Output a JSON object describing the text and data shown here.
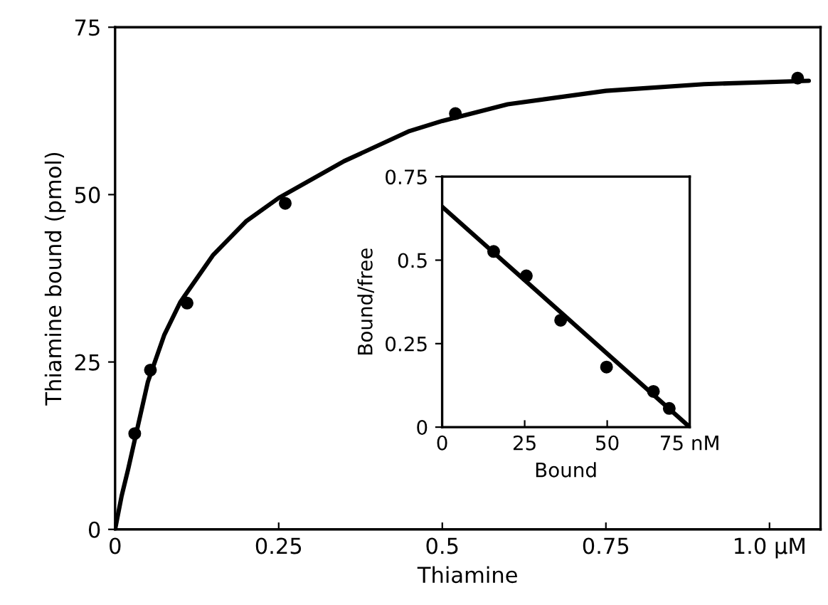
{
  "chart_data": [
    {
      "type": "scatter",
      "xlabel": "Thiamine",
      "ylabel": "Thiamine bound (pmol)",
      "xlim": [
        0,
        1.078
      ],
      "ylim": [
        0,
        75
      ],
      "xticks": [
        0,
        0.25,
        0.5,
        0.75,
        {
          "value": 1.0,
          "label": "1.0 µM"
        }
      ],
      "yticks": [
        0,
        25,
        50,
        75
      ],
      "grid": false,
      "marker": "circle",
      "series": [
        {
          "color": "#000000",
          "x": [
            0.03,
            0.054,
            0.11,
            0.26,
            0.52,
            1.043
          ],
          "values": [
            14.3,
            23.8,
            33.8,
            48.7,
            62.1,
            67.4
          ]
        },
        {
          "type": "line",
          "color": "#000000",
          "line_style": "solid",
          "marker": "none",
          "x": [
            0,
            0.01,
            0.02,
            0.035,
            0.05,
            0.075,
            0.1,
            0.15,
            0.2,
            0.25,
            0.35,
            0.45,
            0.5,
            0.6,
            0.75,
            0.9,
            1.06
          ],
          "values": [
            0,
            5,
            9,
            15.5,
            22,
            29,
            34,
            41,
            46,
            49.5,
            55,
            59.5,
            61,
            63.5,
            65.5,
            66.5,
            67
          ]
        }
      ]
    },
    {
      "type": "scatter",
      "xlabel": "Bound",
      "ylabel": "Bound/free",
      "xlim": [
        0,
        75
      ],
      "ylim": [
        0,
        0.75
      ],
      "xticks": [
        0,
        25,
        50,
        {
          "value": 75,
          "label": "75 nM"
        }
      ],
      "yticks": [
        0,
        0.25,
        0.5,
        0.75
      ],
      "grid": false,
      "marker": "circle",
      "series": [
        {
          "color": "#000000",
          "x": [
            15.6,
            25.5,
            35.9,
            49.8,
            64,
            68.8
          ],
          "values": [
            0.526,
            0.453,
            0.32,
            0.18,
            0.107,
            0.056
          ]
        },
        {
          "type": "line",
          "color": "#000000",
          "line_style": "solid",
          "marker": "none",
          "x": [
            0,
            75
          ],
          "values": [
            0.66,
            0
          ]
        }
      ]
    }
  ]
}
